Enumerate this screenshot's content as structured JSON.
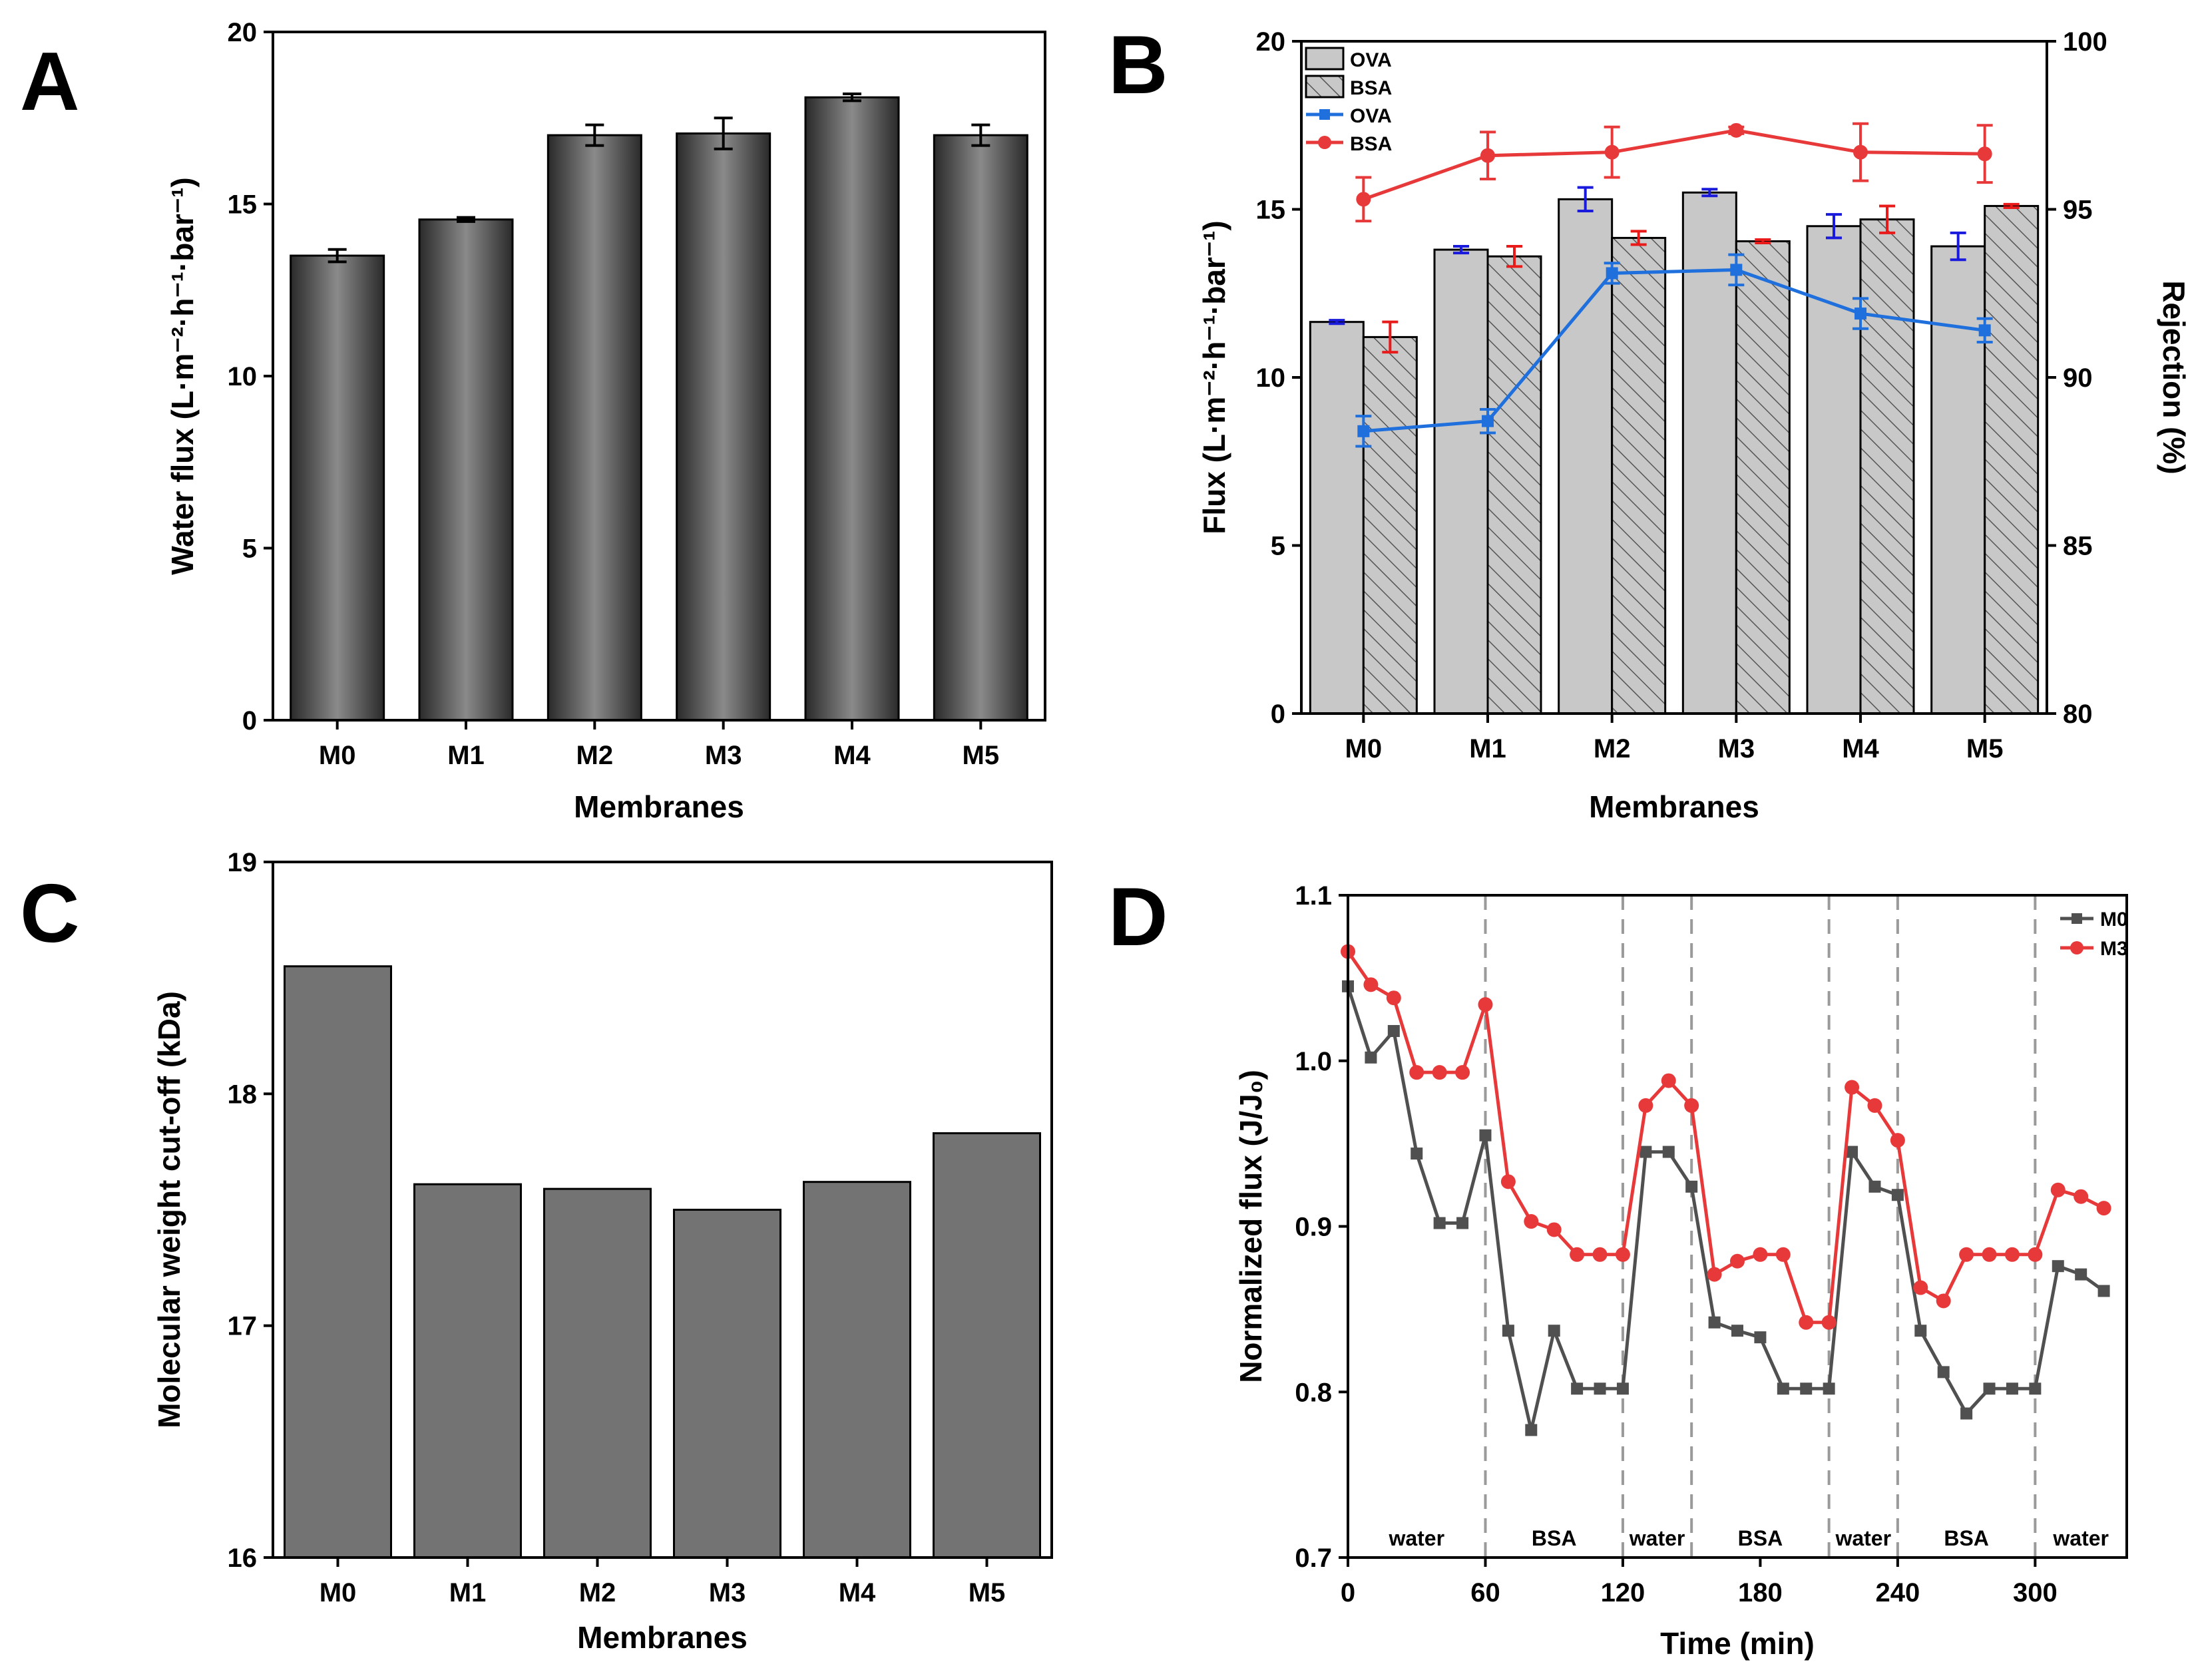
{
  "panels": {
    "A": "A",
    "B": "B",
    "C": "C",
    "D": "D"
  },
  "colors": {
    "ova_line": "#1f6fdc",
    "bsa_line": "#e8393a",
    "m0_line": "#505050",
    "m3_line": "#e8393a",
    "gray_bar": "#737373",
    "light_bar": "#c8c8c8",
    "ova_err": "#1a1adc",
    "bsa_err": "#e81a1a"
  },
  "chart_data": [
    {
      "id": "A",
      "type": "bar",
      "categories": [
        "M0",
        "M1",
        "M2",
        "M3",
        "M4",
        "M5"
      ],
      "values": [
        13.5,
        14.55,
        17.0,
        17.05,
        18.1,
        17.0
      ],
      "errors": [
        0.18,
        0.06,
        0.3,
        0.45,
        0.1,
        0.3
      ],
      "xlabel": "Membranes",
      "ylabel": "Water flux (L·m⁻²·h⁻¹·bar⁻¹)",
      "ylim": [
        0,
        20
      ],
      "yticks": [
        "0",
        "5",
        "10",
        "15",
        "20"
      ]
    },
    {
      "id": "B",
      "type": "bar",
      "categories": [
        "M0",
        "M1",
        "M2",
        "M3",
        "M4",
        "M5"
      ],
      "series": [
        {
          "name": "OVA",
          "kind": "bar",
          "values": [
            11.65,
            13.8,
            15.3,
            15.5,
            14.5,
            13.9
          ],
          "errors": [
            0.05,
            0.1,
            0.35,
            0.1,
            0.35,
            0.4
          ]
        },
        {
          "name": "BSA",
          "kind": "bar",
          "values": [
            11.2,
            13.6,
            14.15,
            14.05,
            14.7,
            15.1
          ],
          "errors": [
            0.45,
            0.3,
            0.2,
            0.05,
            0.4,
            0.05
          ]
        },
        {
          "name": "OVA",
          "kind": "line",
          "axis": "right",
          "values": [
            88.4,
            88.7,
            93.1,
            93.2,
            91.9,
            91.4
          ],
          "errors": [
            0.45,
            0.35,
            0.3,
            0.45,
            0.45,
            0.35
          ]
        },
        {
          "name": "BSA",
          "kind": "line",
          "axis": "right",
          "values": [
            95.3,
            96.6,
            96.7,
            97.35,
            96.7,
            96.65
          ],
          "errors": [
            0.65,
            0.7,
            0.75,
            0.1,
            0.85,
            0.85
          ]
        }
      ],
      "legend": [
        "OVA",
        "BSA",
        "OVA",
        "BSA"
      ],
      "xlabel": "Membranes",
      "ylabel": "Flux (L·m⁻²·h⁻¹·bar⁻¹)",
      "y2label": "Rejection (%)",
      "ylim": [
        0,
        20
      ],
      "y2lim": [
        80,
        100
      ],
      "yticks": [
        "0",
        "5",
        "10",
        "15",
        "20"
      ],
      "y2ticks": [
        "80",
        "85",
        "90",
        "95",
        "100"
      ]
    },
    {
      "id": "C",
      "type": "bar",
      "categories": [
        "M0",
        "M1",
        "M2",
        "M3",
        "M4",
        "M5"
      ],
      "values": [
        18.55,
        17.61,
        17.59,
        17.5,
        17.62,
        17.83
      ],
      "xlabel": "Membranes",
      "ylabel": "Molecular weight cut-off (kDa)",
      "ylim": [
        16,
        19
      ],
      "yticks": [
        "16",
        "17",
        "18",
        "19"
      ]
    },
    {
      "id": "D",
      "type": "line",
      "x": [
        0,
        10,
        20,
        30,
        40,
        50,
        60,
        70,
        80,
        90,
        100,
        110,
        120,
        130,
        140,
        150,
        160,
        170,
        180,
        190,
        200,
        210,
        220,
        230,
        240,
        250,
        260,
        270,
        280,
        290,
        300,
        310,
        320,
        330
      ],
      "series": [
        {
          "name": "M0",
          "values": [
            1.045,
            1.002,
            1.018,
            0.944,
            0.902,
            0.902,
            0.955,
            0.837,
            0.777,
            0.837,
            0.802,
            0.802,
            0.802,
            0.945,
            0.945,
            0.924,
            0.842,
            0.837,
            0.833,
            0.802,
            0.802,
            0.802,
            0.945,
            0.924,
            0.919,
            0.837,
            0.812,
            0.787,
            0.802,
            0.802,
            0.802,
            0.876,
            0.871,
            0.861
          ]
        },
        {
          "name": "M3",
          "values": [
            1.066,
            1.046,
            1.038,
            0.993,
            0.993,
            0.993,
            1.034,
            0.927,
            0.903,
            0.898,
            0.883,
            0.883,
            0.883,
            0.973,
            0.988,
            0.973,
            0.871,
            0.879,
            0.883,
            0.883,
            0.842,
            0.842,
            0.984,
            0.973,
            0.952,
            0.863,
            0.855,
            0.883,
            0.883,
            0.883,
            0.883,
            0.922,
            0.918,
            0.911
          ]
        }
      ],
      "phase_boundaries": [
        60,
        120,
        150,
        210,
        240,
        300
      ],
      "phases": [
        "water",
        "BSA",
        "water",
        "BSA",
        "water",
        "BSA",
        "water"
      ],
      "xlabel": "Time (min)",
      "ylabel": "Normalized flux (J/J₀)",
      "xlim": [
        0,
        340
      ],
      "ylim": [
        0.7,
        1.1
      ],
      "xticks": [
        "0",
        "60",
        "120",
        "180",
        "240",
        "300"
      ],
      "yticks": [
        "0.7",
        "0.8",
        "0.9",
        "1.0",
        "1.1"
      ]
    }
  ]
}
